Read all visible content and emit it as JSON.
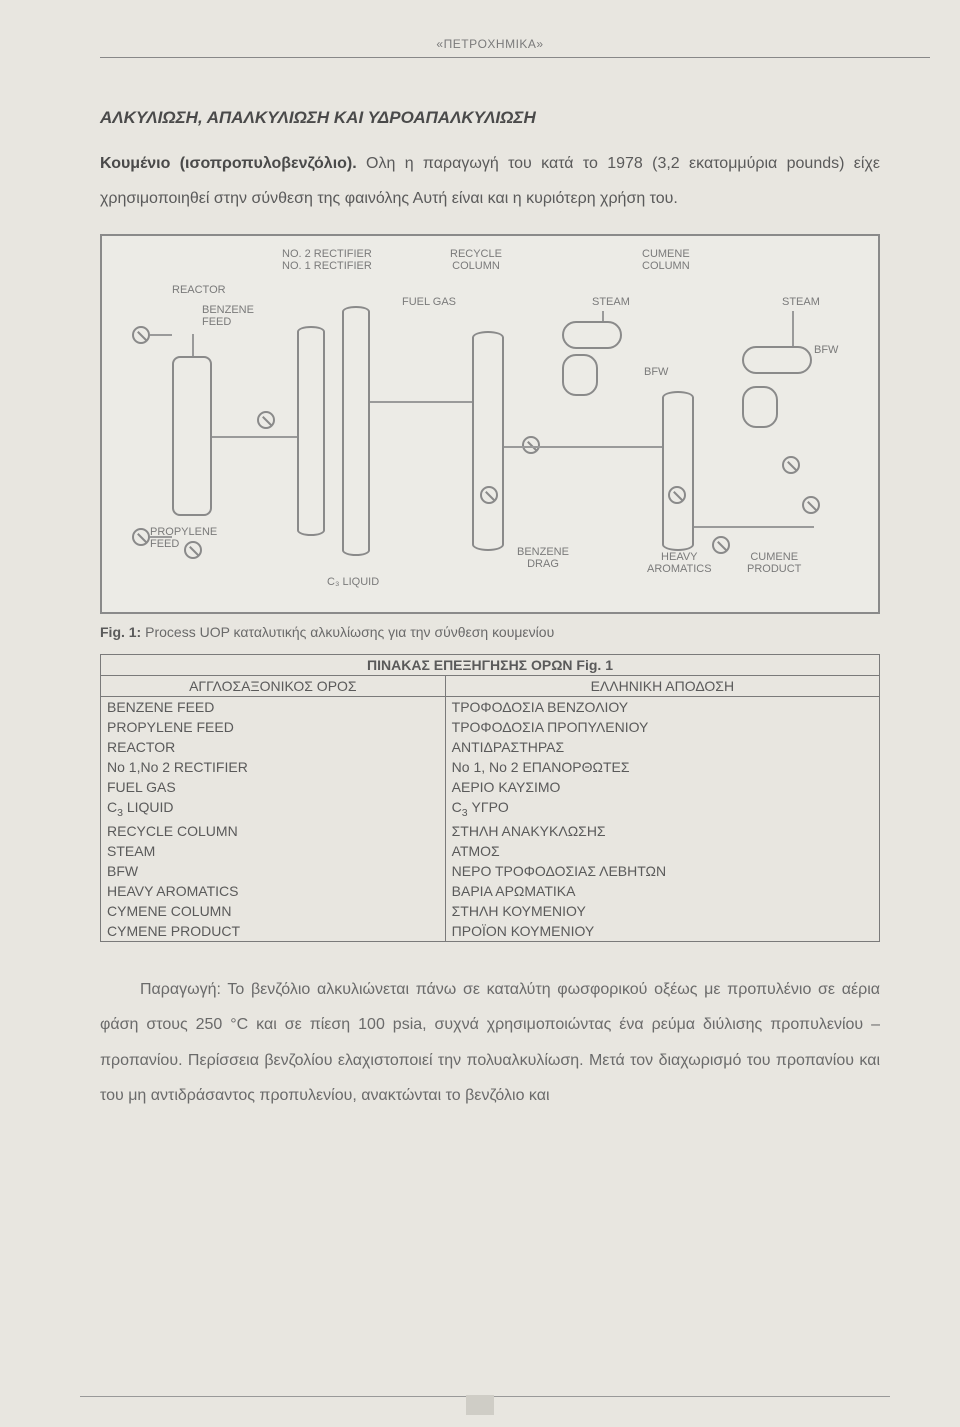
{
  "header": {
    "label": "«ΠΕΤΡΟΧΗΜΙΚΑ»"
  },
  "section_title": "ΑΛΚΥΛΙΩΣΗ, ΑΠΑΛΚΥΛΙΩΣΗ ΚΑΙ ΥΔΡΟΑΠΑΛΚΥΛΙΩΣΗ",
  "intro": {
    "run_in": "Κουμένιο (ισοπροπυλοβενζόλιο).",
    "rest": " Ολη η παραγωγή του κατά το 1978 (3,2 εκατομμύρια pounds) είχε χρησιμοποιηθεί στην σύνθεση της φαινόλης Αυτή είναι και η κυριότερη χρήση του."
  },
  "diagram": {
    "labels": {
      "no2_rect": "NO. 2 RECTIFIER",
      "no1_rect": "NO. 1 RECTIFIER",
      "reactor": "REACTOR",
      "benzene_feed": "BENZENE\nFEED",
      "propylene_feed": "PROPYLENE\nFEED",
      "recycle_col": "RECYCLE\nCOLUMN",
      "fuel_gas": "FUEL GAS",
      "c3_liquid": "C₃ LIQUID",
      "cumene_col": "CUMENE\nCOLUMN",
      "steam1": "STEAM",
      "steam2": "STEAM",
      "bfw1": "BFW",
      "bfw2": "BFW",
      "benzene_drag": "BENZENE\nDRAG",
      "heavy_arom": "HEAVY\nAROMATICS",
      "cumene_prod": "CUMENE\nPRODUCT"
    },
    "colors": {
      "border": "#8a8a8a",
      "bg": "#ecebe6"
    }
  },
  "fig_caption": {
    "lead": "Fig. 1:",
    "text": " Process UOP καταλυτικής αλκυλίωσης για την σύνθεση κουμενίου"
  },
  "table": {
    "title": "ΠΙΝΑΚΑΣ ΕΠΕΞΗΓΗΣΗΣ ΟΡΩΝ Fig. 1",
    "col_left": "ΑΓΓΛΟΣΑΞΟΝΙΚΟΣ ΟΡΟΣ",
    "col_right": "ΕΛΛΗΝΙΚΗ ΑΠΟΔΟΣΗ",
    "rows": [
      [
        "BENZENE FEED",
        "ΤΡΟΦΟΔΟΣΙΑ ΒΕΝΖΟΛΙΟΥ"
      ],
      [
        "PROPYLENE FEED",
        "ΤΡΟΦΟΔΟΣΙΑ ΠΡΟΠΥΛΕΝΙΟΥ"
      ],
      [
        "REACTOR",
        "ΑΝΤΙΔΡΑΣΤΗΡΑΣ"
      ],
      [
        "No 1,No 2 RECTIFIER",
        "No 1, No 2 ΕΠΑΝΟΡΘΩΤΕΣ"
      ],
      [
        "FUEL GAS",
        "ΑΕΡΙΟ ΚΑΥΣΙΜΟ"
      ],
      [
        "C₃ LIQUID",
        "C₃ ΥΓΡΟ"
      ],
      [
        "RECYCLE COLUMN",
        "ΣΤΗΛΗ ΑΝΑΚΥΚΛΩΣΗΣ"
      ],
      [
        "STEAM",
        "ΑΤΜΟΣ"
      ],
      [
        "BFW",
        "ΝΕΡΟ ΤΡΟΦΟΔΟΣΙΑΣ ΛΕΒΗΤΩΝ"
      ],
      [
        "HEAVY AROMATICS",
        "ΒΑΡΙΑ ΑΡΩΜΑΤΙΚΑ"
      ],
      [
        "CYMENE COLUMN",
        "ΣΤΗΛΗ ΚΟΥΜΕΝΙΟΥ"
      ],
      [
        "CYMENE PRODUCT",
        "ΠΡΟΪΟΝ ΚΟΥΜΕΝΙΟΥ"
      ]
    ]
  },
  "body_para": "Παραγωγή: Το βενζόλιο αλκυλιώνεται πάνω σε καταλύτη φωσφορικού οξέως με προπυλένιο σε αέρια φάση στους 250 °C και σε πίεση 100 psia, συχνά χρησιμοποιώντας ένα ρεύμα διύλισης προπυλενίου – προπανίου. Περίσσεια βενζολίου ελαχιστοποιεί την πολυαλκυλίωση. Μετά τον διαχωρισμό του προπανίου και του μη αντιδράσαντος προπυλενίου, ανακτώνται το βενζόλιο και",
  "page_number": ""
}
